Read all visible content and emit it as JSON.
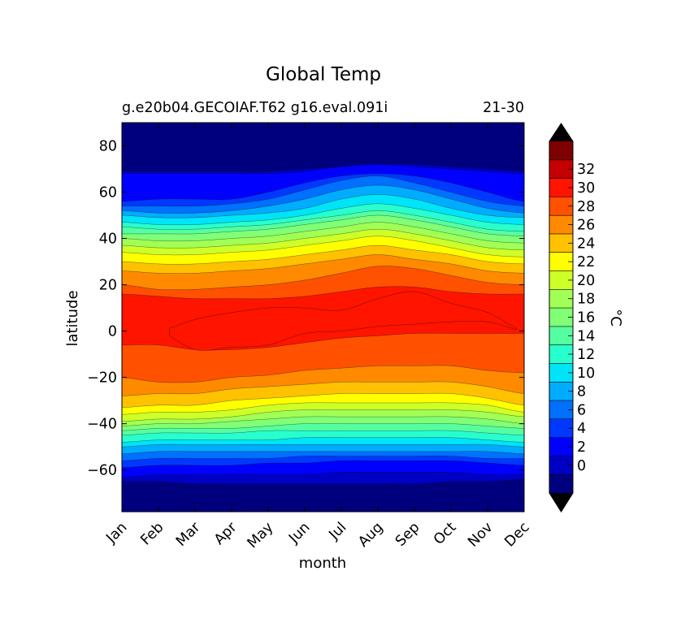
{
  "chart_data": {
    "type": "heatmap",
    "title": "Global Temp",
    "subtitle_left": "g.e20b04.GECOIAF.T62 g16.eval.091i",
    "subtitle_right": "21-30",
    "xlabel": "month",
    "ylabel": "latitude",
    "x_categories": [
      "Jan",
      "Feb",
      "Mar",
      "Apr",
      "May",
      "Jun",
      "Jul",
      "Aug",
      "Sep",
      "Oct",
      "Nov",
      "Dec"
    ],
    "y_ticks": [
      80,
      60,
      40,
      20,
      0,
      -20,
      -40,
      -60
    ],
    "y_tick_labels": [
      "80",
      "60",
      "40",
      "20",
      "0",
      "−20",
      "−40",
      "−60"
    ],
    "ylim": [
      -78,
      90
    ],
    "grid": false,
    "colorbar": {
      "label": "°C",
      "levels": [
        -2,
        0,
        2,
        4,
        6,
        8,
        10,
        12,
        14,
        16,
        18,
        20,
        22,
        24,
        26,
        28,
        30,
        32,
        34
      ],
      "tick_values": [
        0,
        2,
        4,
        6,
        8,
        10,
        12,
        14,
        16,
        18,
        20,
        22,
        24,
        26,
        28,
        30,
        32
      ],
      "tick_labels": [
        "0",
        "2",
        "4",
        "6",
        "8",
        "10",
        "12",
        "14",
        "16",
        "18",
        "20",
        "22",
        "24",
        "26",
        "28",
        "30",
        "32"
      ],
      "colors": [
        "#00007f",
        "#0000c4",
        "#0000ff",
        "#0038ff",
        "#0070ff",
        "#00acff",
        "#00e4f8",
        "#29ffce",
        "#55ffa1",
        "#80ff77",
        "#a1ff55",
        "#ceff29",
        "#ffff00",
        "#ffc100",
        "#ff8a00",
        "#ff5100",
        "#ff1400",
        "#c40000",
        "#7f0000"
      ],
      "extend": "both"
    },
    "isotherm_latitudes": {
      "months": [
        1,
        2,
        3,
        4,
        5,
        6,
        7,
        8,
        9,
        10,
        11,
        12
      ],
      "level_values": [
        0,
        2,
        4,
        6,
        8,
        10,
        12,
        14,
        16,
        18,
        20,
        22,
        24,
        26,
        28,
        30
      ],
      "north": [
        [
          69,
          69,
          69,
          69,
          69,
          70,
          71,
          72,
          72,
          71,
          70,
          69
        ],
        [
          68,
          68,
          68,
          68,
          68,
          69,
          71,
          72,
          71,
          70,
          69,
          68
        ],
        [
          56,
          57,
          57,
          57,
          60,
          64,
          67,
          68,
          67,
          64,
          60,
          56
        ],
        [
          54,
          54,
          54,
          55,
          57,
          61,
          65,
          67,
          64,
          60,
          56,
          54
        ],
        [
          52,
          51,
          51,
          52,
          54,
          57,
          61,
          63,
          61,
          57,
          53,
          51
        ],
        [
          50,
          49,
          49,
          50,
          51,
          53,
          57,
          59,
          57,
          53,
          50,
          49
        ],
        [
          47,
          46,
          46,
          47,
          48,
          50,
          53,
          55,
          53,
          50,
          47,
          46
        ],
        [
          45,
          44,
          44,
          45,
          46,
          48,
          50,
          52,
          50,
          47,
          44,
          43
        ],
        [
          42,
          42,
          42,
          43,
          44,
          46,
          48,
          50,
          48,
          45,
          42,
          41
        ],
        [
          40,
          39,
          39,
          40,
          41,
          43,
          45,
          47,
          45,
          42,
          39,
          38
        ],
        [
          37,
          36,
          36,
          37,
          38,
          40,
          42,
          44,
          42,
          39,
          36,
          35
        ],
        [
          34,
          33,
          33,
          34,
          35,
          37,
          39,
          41,
          39,
          36,
          33,
          32
        ],
        [
          30,
          29,
          29,
          30,
          31,
          33,
          35,
          37,
          35,
          33,
          30,
          29
        ],
        [
          26,
          25,
          25,
          26,
          27,
          29,
          31,
          33,
          31,
          29,
          26,
          25
        ],
        [
          20,
          18,
          18,
          19,
          20,
          22,
          25,
          28,
          27,
          24,
          21,
          20
        ],
        [
          16,
          15,
          14,
          14,
          14,
          15,
          17,
          19,
          19,
          17,
          16,
          16
        ]
      ],
      "south": [
        [
          -65,
          -65,
          -66,
          -66,
          -66,
          -66,
          -66,
          -66,
          -66,
          -65,
          -65,
          -64
        ],
        [
          -63,
          -62,
          -62,
          -62,
          -62,
          -62,
          -61,
          -61,
          -61,
          -61,
          -62,
          -62
        ],
        [
          -59,
          -58,
          -58,
          -58,
          -57,
          -57,
          -56,
          -56,
          -56,
          -56,
          -57,
          -58
        ],
        [
          -56,
          -55,
          -55,
          -55,
          -55,
          -54,
          -54,
          -54,
          -54,
          -54,
          -55,
          -55
        ],
        [
          -53,
          -52,
          -52,
          -52,
          -52,
          -52,
          -52,
          -52,
          -52,
          -52,
          -52,
          -53
        ],
        [
          -50,
          -49,
          -49,
          -49,
          -49,
          -49,
          -49,
          -49,
          -49,
          -49,
          -49,
          -50
        ],
        [
          -48,
          -47,
          -47,
          -47,
          -47,
          -46,
          -46,
          -46,
          -46,
          -46,
          -47,
          -48
        ],
        [
          -45,
          -44,
          -44,
          -44,
          -43,
          -43,
          -43,
          -43,
          -43,
          -43,
          -44,
          -45
        ],
        [
          -43,
          -42,
          -42,
          -42,
          -41,
          -40,
          -40,
          -40,
          -40,
          -40,
          -41,
          -42
        ],
        [
          -41,
          -40,
          -40,
          -39,
          -38,
          -37,
          -37,
          -37,
          -37,
          -37,
          -38,
          -40
        ],
        [
          -39,
          -38,
          -38,
          -37,
          -35,
          -34,
          -34,
          -34,
          -34,
          -34,
          -35,
          -37
        ],
        [
          -36,
          -35,
          -35,
          -34,
          -32,
          -31,
          -31,
          -31,
          -31,
          -31,
          -32,
          -35
        ],
        [
          -33,
          -32,
          -32,
          -30,
          -29,
          -28,
          -27,
          -27,
          -27,
          -27,
          -29,
          -32
        ],
        [
          -28,
          -27,
          -27,
          -25,
          -24,
          -23,
          -22,
          -22,
          -22,
          -22,
          -24,
          -27
        ],
        [
          -20,
          -22,
          -22,
          -20,
          -19,
          -17,
          -16,
          -15,
          -15,
          -15,
          -17,
          -18
        ],
        [
          -6,
          -6,
          -8,
          -8,
          -7,
          -5,
          -3,
          -2,
          -1,
          -1,
          -1,
          -1
        ]
      ],
      "warm_core_30": {
        "lat_max": [
          0,
          0,
          5,
          8,
          10,
          10,
          9,
          14,
          17,
          12,
          8,
          0
        ],
        "lat_min": [
          0,
          0,
          -8,
          -7,
          -6,
          -1,
          0,
          2,
          3,
          4,
          4,
          0
        ],
        "month_range": [
          2.3,
          11.8
        ]
      },
      "cold_pole_south": {
        "lat_top": [
          -70,
          -72,
          -74,
          -75,
          -76,
          -76,
          -76,
          -76,
          -76,
          -75,
          -74,
          -72
        ],
        "month_range": [
          2.7,
          12.0
        ]
      }
    }
  }
}
